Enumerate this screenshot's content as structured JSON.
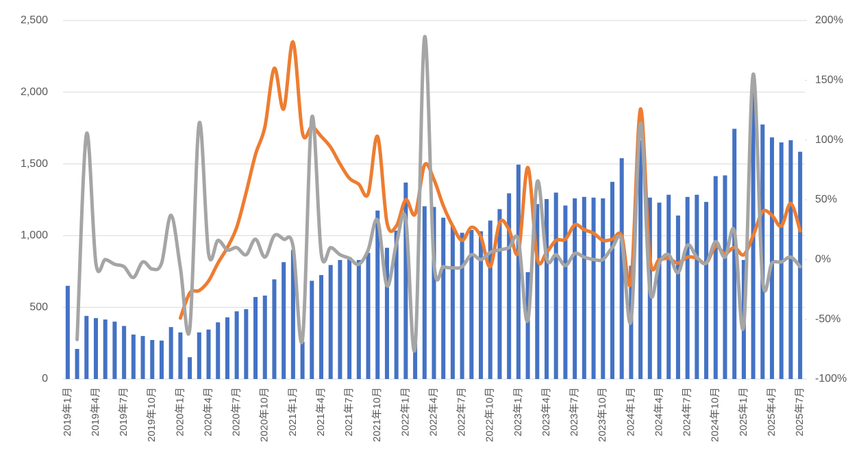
{
  "chart_data": {
    "type": "bar",
    "categories": [
      "2019年1月",
      null,
      null,
      "2019年4月",
      null,
      null,
      "2019年7月",
      null,
      null,
      "2019年10月",
      null,
      null,
      "2020年1月",
      null,
      null,
      "2020年4月",
      null,
      null,
      "2020年7月",
      null,
      null,
      "2020年10月",
      null,
      null,
      "2021年1月",
      null,
      null,
      "2021年4月",
      null,
      null,
      "2021年7月",
      null,
      null,
      "2021年10月",
      null,
      null,
      "2022年1月",
      null,
      null,
      "2022年4月",
      null,
      null,
      "2022年7月",
      null,
      null,
      "2022年10月",
      null,
      null,
      "2023年1月",
      null,
      null,
      "2023年4月",
      null,
      null,
      "2023年7月",
      null,
      null,
      "2023年10月",
      null,
      null,
      "2024年1月",
      null,
      null,
      "2024年4月",
      null,
      null,
      "2024年7月",
      null,
      null,
      "2024年10月",
      null,
      null,
      "2025年1月",
      null,
      null,
      "2025年4月",
      null,
      null,
      "2025年7月"
    ],
    "series": [
      {
        "type": "bar",
        "color": "#4472c4",
        "values": [
          650,
          210,
          440,
          425,
          415,
          400,
          370,
          310,
          300,
          272,
          268,
          362,
          325,
          152,
          325,
          345,
          395,
          430,
          472,
          487,
          572,
          582,
          695,
          815,
          900,
          260,
          685,
          725,
          795,
          830,
          850,
          830,
          880,
          1175,
          915,
          1035,
          1370,
          260,
          1205,
          1200,
          1125,
          1070,
          1020,
          1040,
          1030,
          1105,
          1185,
          1295,
          1495,
          745,
          1220,
          1255,
          1300,
          1210,
          1260,
          1270,
          1265,
          1260,
          1375,
          1540,
          790,
          1665,
          1265,
          1230,
          1285,
          1140,
          1270,
          1285,
          1235,
          1415,
          1420,
          1745,
          830,
          2100,
          1775,
          1685,
          1650,
          1665,
          1585
        ]
      },
      {
        "type": "line",
        "axis": "y2",
        "color": "#ed7d31",
        "values": [
          null,
          null,
          null,
          null,
          null,
          null,
          null,
          null,
          null,
          null,
          null,
          null,
          -49,
          -28,
          -26,
          -18,
          -3,
          10,
          27,
          56,
          88,
          111,
          160,
          126,
          182,
          106,
          111,
          103,
          94,
          80,
          68,
          63,
          55,
          103,
          31,
          28,
          50,
          38,
          79,
          67,
          45,
          28,
          16,
          27,
          19,
          -6,
          31,
          25,
          6,
          77,
          1,
          6,
          16,
          17,
          29,
          25,
          22,
          16,
          17,
          20,
          -18,
          126,
          1,
          0,
          1,
          -3,
          2,
          1,
          -3,
          11,
          5,
          10,
          4,
          20,
          40,
          37,
          28,
          47,
          24
        ]
      },
      {
        "type": "line",
        "axis": "y2",
        "color": "#a5a5a5",
        "values": [
          null,
          -67,
          105,
          -3,
          0,
          -4,
          -6,
          -15,
          -2,
          -8,
          -3,
          37,
          -7,
          -58,
          114,
          5,
          16,
          8,
          10,
          4,
          17,
          2,
          20,
          17,
          11,
          -67,
          119,
          5,
          10,
          4,
          1,
          -4,
          8,
          33,
          -22,
          13,
          34,
          -73,
          186,
          -2,
          -6,
          -7,
          -6,
          4,
          0,
          6,
          8,
          10,
          16,
          -51,
          65,
          1,
          4,
          -5,
          5,
          2,
          0,
          0,
          10,
          16,
          -51,
          114,
          -26,
          -3,
          4,
          -11,
          12,
          2,
          -3,
          15,
          2,
          24,
          -55,
          155,
          -17,
          -3,
          -2,
          2,
          -6
        ]
      }
    ],
    "ylim": [
      0,
      2500
    ],
    "yticks": [
      0,
      500,
      {
        "value": 1000,
        "label": "1,000"
      },
      {
        "value": 1500,
        "label": "1,500"
      },
      {
        "value": 2000,
        "label": "2,000"
      },
      {
        "value": 2500,
        "label": "2,500"
      }
    ],
    "y2lim": [
      -100,
      200
    ],
    "y2ticks": [
      {
        "value": -100,
        "label": "-100%"
      },
      {
        "value": -50,
        "label": "-50%"
      },
      {
        "value": 0,
        "label": "0%"
      },
      {
        "value": 50,
        "label": "50%"
      },
      {
        "value": 100,
        "label": "100%"
      },
      {
        "value": 150,
        "label": "150%"
      },
      {
        "value": 200,
        "label": "200%"
      }
    ],
    "grid": true
  }
}
